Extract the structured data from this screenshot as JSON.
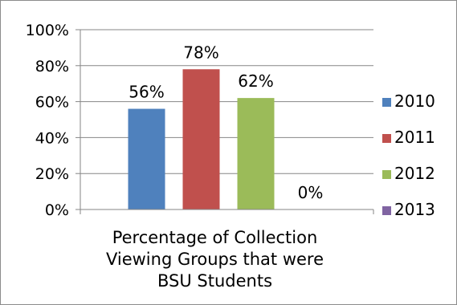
{
  "chart_data": {
    "type": "bar",
    "categories": [
      "Percentage of Collection Viewing Groups that were BSU Students"
    ],
    "category_label_lines": [
      "Percentage of Collection",
      "Viewing Groups that were",
      "BSU Students"
    ],
    "series": [
      {
        "name": "2010",
        "values": [
          56
        ],
        "label": "56%",
        "color": "#4f81bd"
      },
      {
        "name": "2011",
        "values": [
          78
        ],
        "label": "78%",
        "color": "#c0504d"
      },
      {
        "name": "2012",
        "values": [
          62
        ],
        "label": "62%",
        "color": "#9bbb59"
      },
      {
        "name": "2013",
        "values": [
          0
        ],
        "label": "0%",
        "color": "#8064a2"
      }
    ],
    "ylim": [
      0,
      100
    ],
    "y_ticks": [
      {
        "value": 0,
        "label": "0%"
      },
      {
        "value": 20,
        "label": "20%"
      },
      {
        "value": 40,
        "label": "40%"
      },
      {
        "value": 60,
        "label": "60%"
      },
      {
        "value": 80,
        "label": "80%"
      },
      {
        "value": 100,
        "label": "100%"
      }
    ],
    "grid": true,
    "legend_position": "right"
  }
}
